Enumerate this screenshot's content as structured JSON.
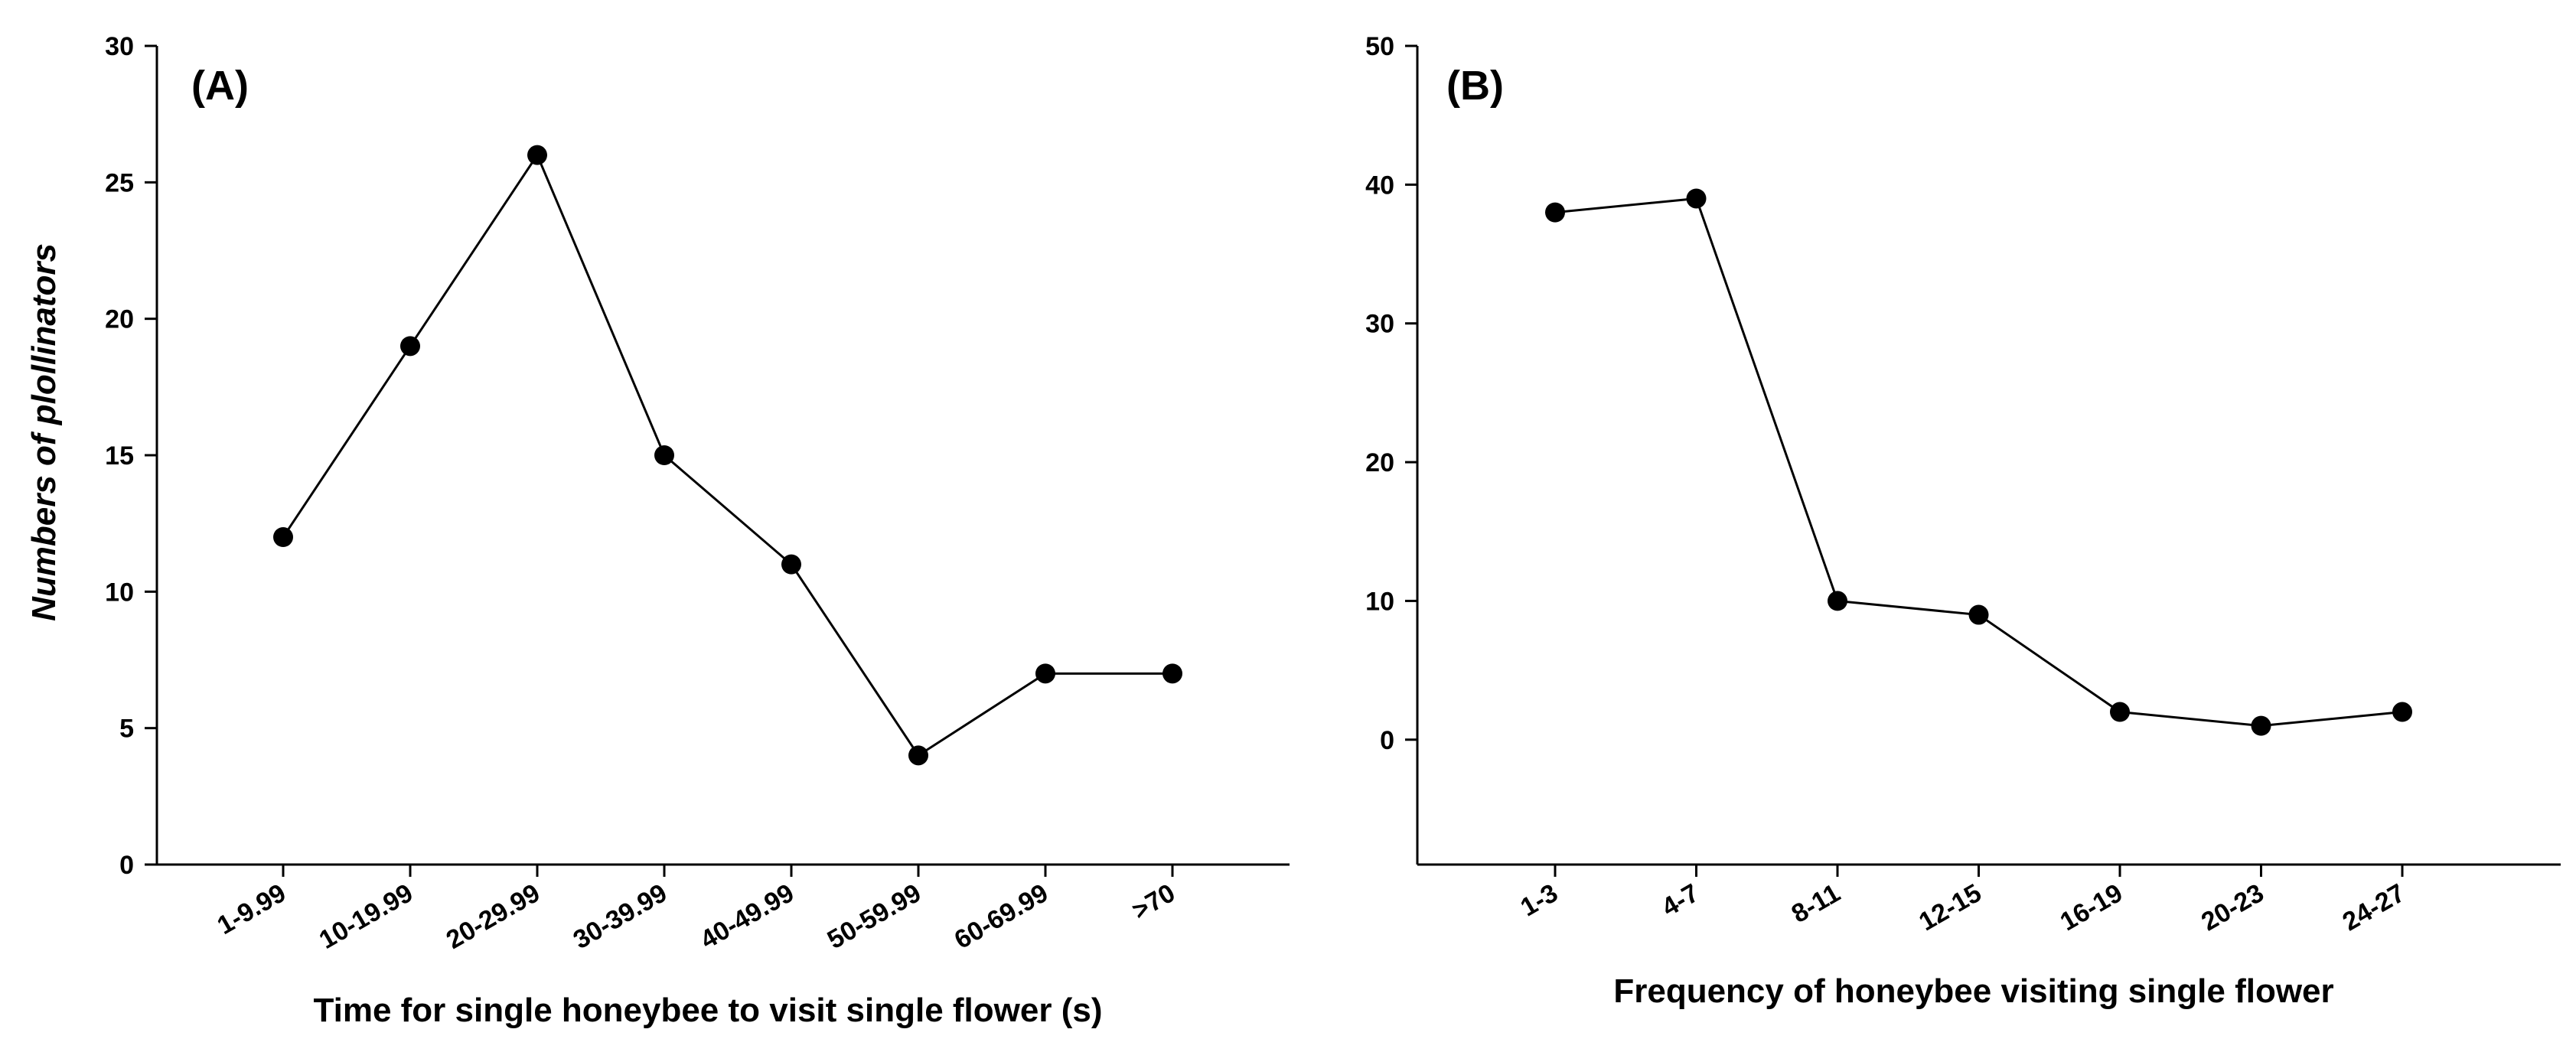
{
  "chart_data": [
    {
      "type": "line",
      "panel_label": "(A)",
      "categories": [
        "1-9.99",
        "10-19.99",
        "20-29.99",
        "30-39.99",
        "40-49.99",
        "50-59.99",
        "60-69.99",
        ">70"
      ],
      "values": [
        12,
        19,
        26,
        15,
        11,
        4,
        7,
        7
      ],
      "xlabel": "Time for single honeybee to visit single flower (s)",
      "ylabel": "Numbers of plollinators",
      "ylim": [
        0,
        30
      ],
      "yticks": [
        0,
        5,
        10,
        15,
        20,
        25,
        30
      ],
      "grid": false
    },
    {
      "type": "line",
      "panel_label": "(B)",
      "categories": [
        "1-3",
        "4-7",
        "8-11",
        "12-15",
        "16-19",
        "20-23",
        "24-27"
      ],
      "values": [
        38,
        39,
        10,
        9,
        2,
        1,
        2
      ],
      "xlabel": "Frequency of honeybee visiting single flower",
      "ylabel": "",
      "ylim": [
        -9,
        50
      ],
      "yticks": [
        0,
        10,
        20,
        30,
        40,
        50
      ],
      "grid": false
    }
  ],
  "colors": {
    "line": "#000000",
    "marker": "#000000",
    "axis": "#000000"
  }
}
